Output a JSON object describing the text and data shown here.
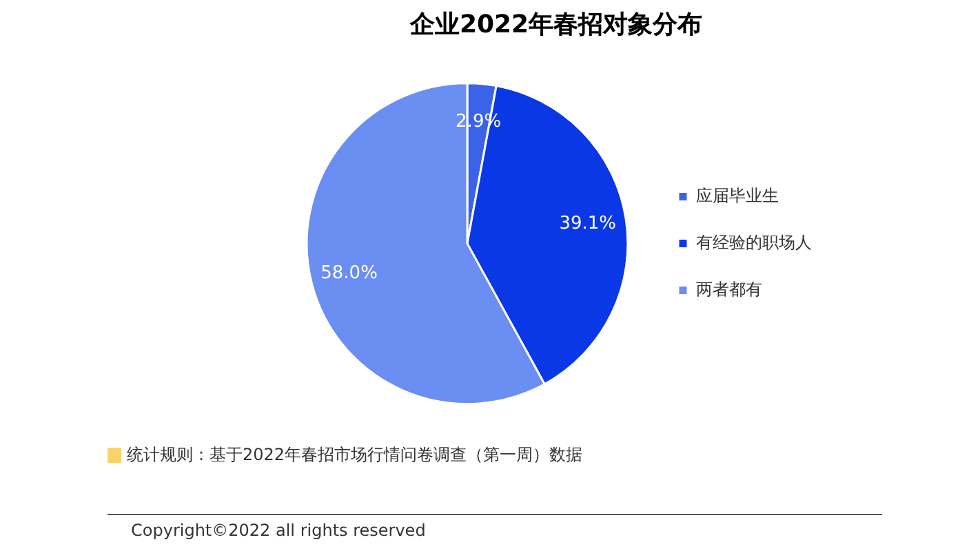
{
  "chart_data": {
    "type": "pie",
    "title": "企业2022年春招对象分布",
    "categories": [
      "应届毕业生",
      "有经验的职场人",
      "两者都有"
    ],
    "values": [
      2.9,
      39.1,
      58.0
    ],
    "colors": [
      "#3a63ea",
      "#0b38e6",
      "#6a8ef2"
    ],
    "value_labels": [
      "2.9%",
      "39.1%",
      "58.0%"
    ],
    "legend": "right",
    "annotations": [
      "统计规则：基于2022年春招市场行情问卷调查（第一周）数据",
      "Copyright©2022 all rights reserved"
    ]
  }
}
